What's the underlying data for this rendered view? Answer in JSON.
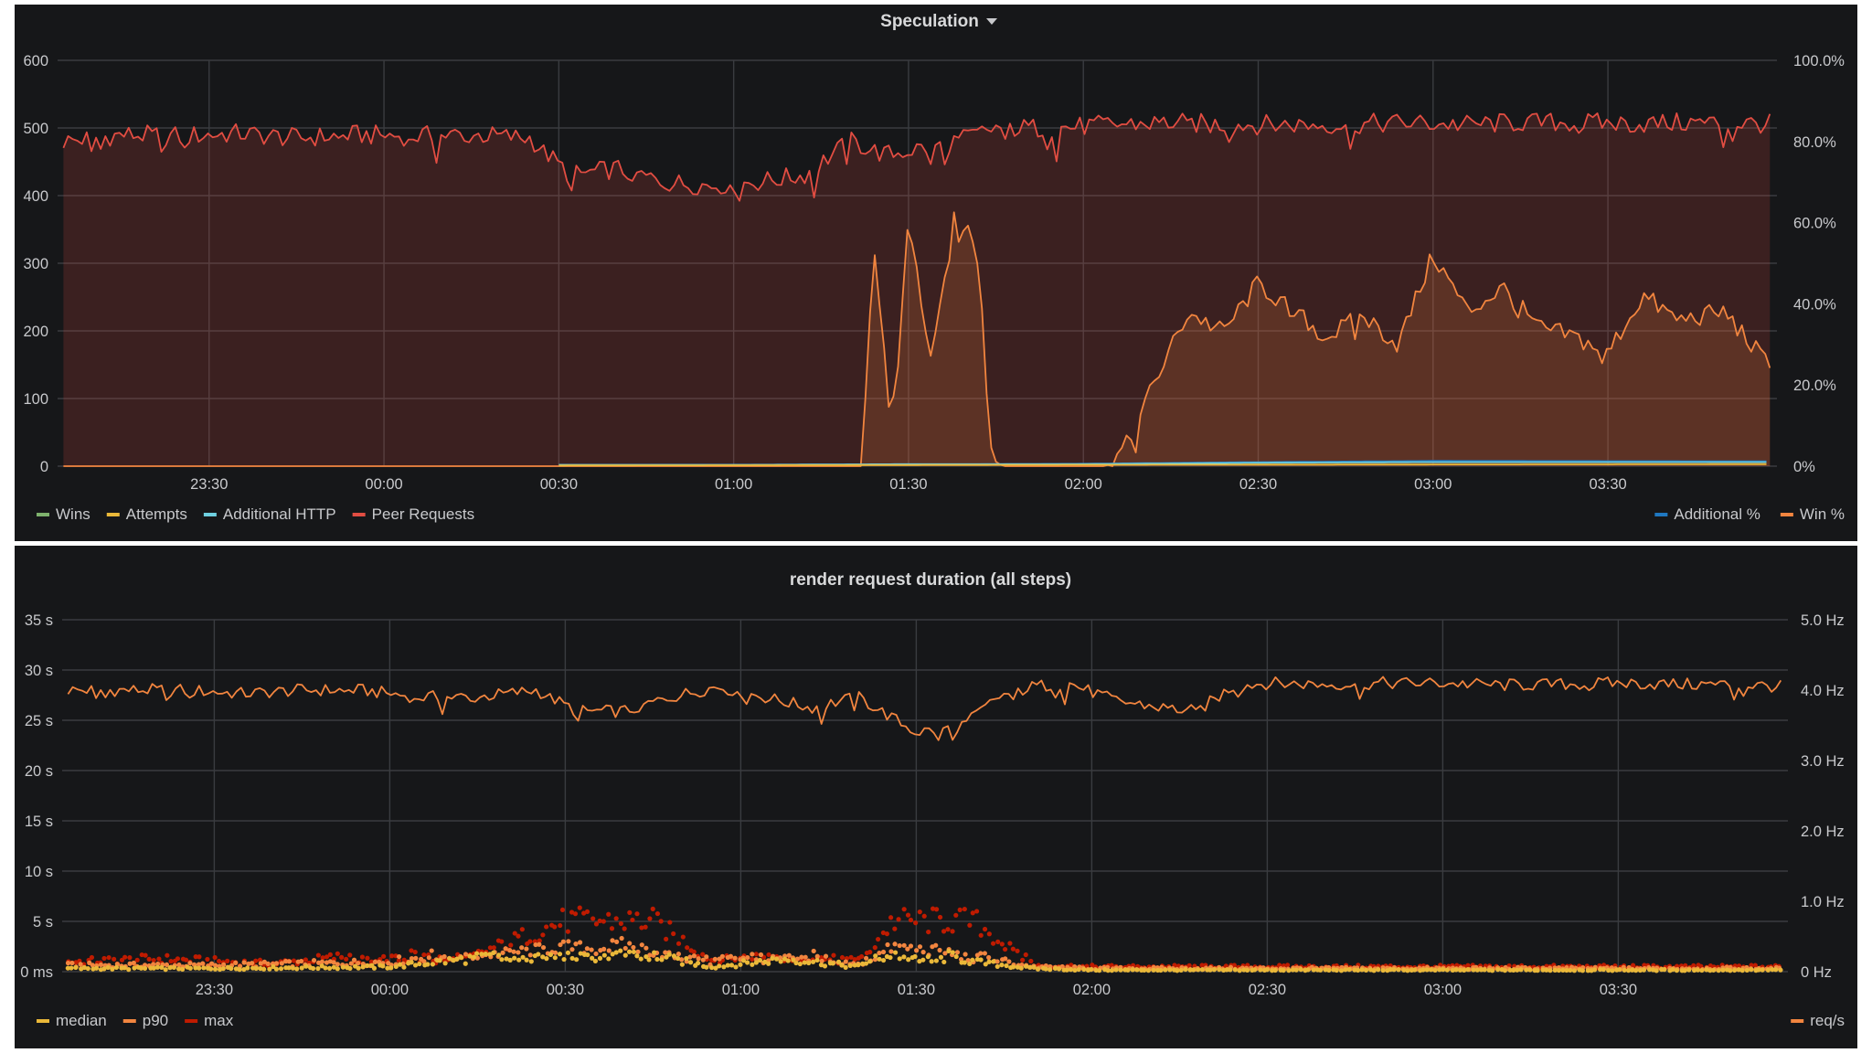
{
  "colors": {
    "background": "#161719",
    "grid": "#3a3c40",
    "text": "#c8c9cc",
    "red": "#e24d42",
    "orange": "#f2853f",
    "yellow": "#eab839",
    "green": "#7eb26d",
    "lightblue": "#6ed0e0",
    "blue": "#1f78c1",
    "darkred": "#bf1b00"
  },
  "chart_data": [
    {
      "type": "line",
      "title": "Speculation",
      "title_icon": "caret-down-icon",
      "x_ticks": [
        "23:30",
        "00:00",
        "00:30",
        "01:00",
        "01:30",
        "02:00",
        "02:30",
        "03:00",
        "03:30"
      ],
      "xlim": [
        "23:04",
        "03:59"
      ],
      "y_left": {
        "ticks": [
          "0",
          "100",
          "200",
          "300",
          "400",
          "500",
          "600"
        ],
        "ylim": [
          0,
          600
        ]
      },
      "y_right": {
        "ticks": [
          "0%",
          "20.0%",
          "40.0%",
          "60.0%",
          "80.0%",
          "100.0%"
        ],
        "ylim": [
          0,
          100
        ]
      },
      "legend_left": [
        {
          "name": "Wins",
          "color": "#7eb26d"
        },
        {
          "name": "Attempts",
          "color": "#eab839"
        },
        {
          "name": "Additional HTTP",
          "color": "#6ed0e0"
        },
        {
          "name": "Peer Requests",
          "color": "#e24d42"
        }
      ],
      "legend_right": [
        {
          "name": "Additional %",
          "color": "#1f78c1"
        },
        {
          "name": "Win %",
          "color": "#f2853f"
        }
      ],
      "series": [
        {
          "name": "Peer Requests",
          "axis": "left",
          "color": "#e24d42",
          "fill": true,
          "x": [
            "23:05",
            "23:15",
            "23:25",
            "23:35",
            "23:45",
            "23:55",
            "00:05",
            "00:15",
            "00:25",
            "00:32",
            "00:40",
            "00:48",
            "00:56",
            "01:04",
            "01:12",
            "01:20",
            "01:26",
            "01:32",
            "01:38",
            "01:45",
            "01:55",
            "02:05",
            "02:15",
            "02:25",
            "02:35",
            "02:45",
            "02:55",
            "03:05",
            "03:15",
            "03:25",
            "03:35",
            "03:45",
            "03:58"
          ],
          "y": [
            480,
            490,
            488,
            492,
            485,
            490,
            488,
            490,
            485,
            430,
            440,
            420,
            415,
            420,
            430,
            480,
            460,
            470,
            480,
            500,
            500,
            505,
            508,
            505,
            505,
            505,
            508,
            505,
            508,
            508,
            506,
            508,
            506
          ]
        },
        {
          "name": "Win %",
          "axis": "right",
          "color": "#f2853f",
          "fill": true,
          "x": [
            "23:05",
            "01:22",
            "01:24",
            "01:27",
            "01:30",
            "01:34",
            "01:38",
            "01:42",
            "01:44",
            "01:46",
            "02:04",
            "02:08",
            "02:12",
            "02:18",
            "02:24",
            "02:30",
            "02:36",
            "02:42",
            "02:48",
            "02:54",
            "03:00",
            "03:06",
            "03:12",
            "03:18",
            "03:24",
            "03:30",
            "03:36",
            "03:42",
            "03:50",
            "03:58"
          ],
          "y": [
            0,
            0,
            55,
            10,
            60,
            25,
            62,
            55,
            5,
            0,
            0,
            6,
            20,
            38,
            33,
            45,
            38,
            32,
            37,
            30,
            52,
            38,
            44,
            34,
            32,
            28,
            42,
            36,
            38,
            24
          ]
        },
        {
          "name": "Additional %",
          "axis": "right",
          "color": "#1f78c1",
          "x": [
            "00:30",
            "01:30",
            "02:00",
            "02:30",
            "03:00",
            "03:58"
          ],
          "y": [
            0.3,
            0.4,
            0.6,
            1.0,
            1.3,
            1.2
          ]
        },
        {
          "name": "Additional HTTP",
          "axis": "left",
          "color": "#6ed0e0",
          "x": [
            "00:30",
            "01:00",
            "01:30",
            "02:00",
            "02:30",
            "03:00",
            "03:58"
          ],
          "y": [
            2,
            2,
            3,
            3,
            5,
            6,
            6
          ]
        },
        {
          "name": "Attempts",
          "axis": "left",
          "color": "#eab839",
          "x": [
            "00:30",
            "02:00",
            "03:58"
          ],
          "y": [
            1,
            2,
            3
          ]
        }
      ]
    },
    {
      "type": "line",
      "title": "render request duration (all steps)",
      "x_ticks": [
        "23:30",
        "00:00",
        "00:30",
        "01:00",
        "01:30",
        "02:00",
        "02:30",
        "03:00",
        "03:30"
      ],
      "xlim": [
        "23:04",
        "03:59"
      ],
      "y_left": {
        "ticks": [
          "0 ms",
          "5 s",
          "10 s",
          "15 s",
          "20 s",
          "25 s",
          "30 s",
          "35 s"
        ],
        "ylim": [
          0,
          35
        ]
      },
      "y_right": {
        "ticks": [
          "0 Hz",
          "1.0 Hz",
          "2.0 Hz",
          "3.0 Hz",
          "4.0 Hz",
          "5.0 Hz"
        ],
        "ylim": [
          0,
          5
        ]
      },
      "legend_left": [
        {
          "name": "median",
          "color": "#eab839"
        },
        {
          "name": "p90",
          "color": "#f2853f"
        },
        {
          "name": "max",
          "color": "#bf1b00"
        }
      ],
      "legend_right": [
        {
          "name": "req/s",
          "color": "#f2853f"
        }
      ],
      "series": [
        {
          "name": "req/s",
          "axis": "right",
          "color": "#f2853f",
          "x": [
            "23:05",
            "23:15",
            "23:25",
            "23:35",
            "23:45",
            "23:55",
            "00:05",
            "00:15",
            "00:25",
            "00:32",
            "00:40",
            "00:48",
            "00:56",
            "01:04",
            "01:12",
            "01:20",
            "01:26",
            "01:30",
            "01:34",
            "01:38",
            "01:44",
            "01:50",
            "01:56",
            "02:04",
            "02:12",
            "02:18",
            "02:24",
            "02:30",
            "02:40",
            "02:50",
            "03:00",
            "03:10",
            "03:20",
            "03:30",
            "03:40",
            "03:50",
            "03:58"
          ],
          "y": [
            4.0,
            4.0,
            4.0,
            3.95,
            4.0,
            4.0,
            3.9,
            3.9,
            4.0,
            3.7,
            3.7,
            3.9,
            4.05,
            3.9,
            3.75,
            3.9,
            3.6,
            3.4,
            3.45,
            3.5,
            3.9,
            4.05,
            4.1,
            3.85,
            3.75,
            3.7,
            4.05,
            4.1,
            4.08,
            4.1,
            4.1,
            4.07,
            4.08,
            4.1,
            4.08,
            4.08,
            4.05
          ]
        },
        {
          "name": "max",
          "axis": "left",
          "color": "#bf1b00",
          "markers": true,
          "x": [
            "23:05",
            "23:20",
            "23:40",
            "00:00",
            "00:10",
            "00:30",
            "00:35",
            "00:40",
            "00:45",
            "00:55",
            "01:05",
            "01:10",
            "01:20",
            "01:26",
            "01:30",
            "01:35",
            "01:40",
            "01:50",
            "02:00",
            "02:30",
            "03:00",
            "03:30",
            "03:58"
          ],
          "y": [
            0.6,
            0.8,
            0.5,
            1.2,
            0.6,
            4.5,
            4.5,
            4.5,
            4.5,
            1.0,
            1.5,
            1.0,
            0.6,
            4.5,
            4.5,
            4.5,
            4.5,
            0.4,
            0.3,
            0.3,
            0.3,
            0.3,
            0.3
          ]
        },
        {
          "name": "p90",
          "axis": "left",
          "color": "#f2853f",
          "markers": true,
          "x": [
            "23:05",
            "23:30",
            "00:00",
            "00:30",
            "00:35",
            "00:40",
            "00:45",
            "00:55",
            "01:08",
            "01:20",
            "01:26",
            "01:30",
            "01:35",
            "01:40",
            "01:50",
            "02:00",
            "02:30",
            "03:00",
            "03:30",
            "03:58"
          ],
          "y": [
            0.4,
            0.4,
            0.6,
            2.2,
            2.0,
            2.4,
            1.8,
            0.6,
            1.2,
            0.5,
            2.2,
            2.0,
            1.8,
            1.0,
            0.3,
            0.2,
            0.2,
            0.2,
            0.2,
            0.2
          ]
        },
        {
          "name": "median",
          "axis": "left",
          "color": "#eab839",
          "markers": true,
          "x": [
            "23:05",
            "23:30",
            "00:00",
            "00:30",
            "00:35",
            "00:40",
            "00:45",
            "00:55",
            "01:08",
            "01:20",
            "01:26",
            "01:30",
            "01:35",
            "01:40",
            "01:50",
            "02:00",
            "02:30",
            "03:00",
            "03:30",
            "03:58"
          ],
          "y": [
            0.2,
            0.2,
            0.3,
            1.4,
            1.2,
            1.6,
            1.0,
            0.3,
            0.8,
            0.3,
            1.5,
            1.2,
            1.0,
            0.6,
            0.2,
            0.1,
            0.1,
            0.1,
            0.1,
            0.1
          ]
        }
      ]
    }
  ]
}
